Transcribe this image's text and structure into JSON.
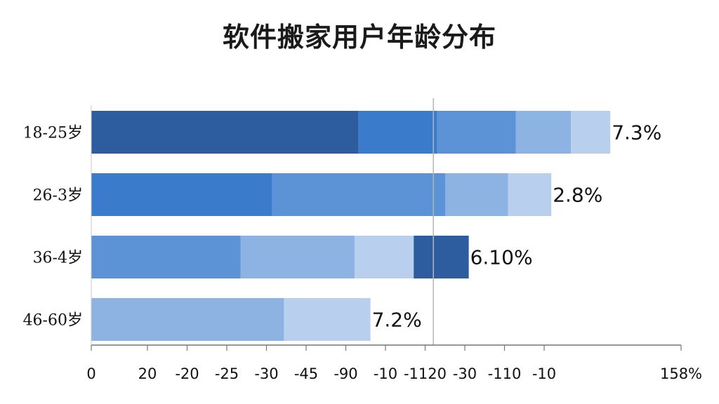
{
  "chart_data": {
    "type": "bar",
    "orientation": "horizontal",
    "stacked": true,
    "title": "软件搬家用户年龄分布",
    "categories": [
      "18-25岁",
      "26-3岁",
      "36-4岁",
      "46-60岁"
    ],
    "segments": [
      [
        68,
        20,
        20,
        14,
        10
      ],
      [
        46,
        44,
        16,
        11
      ],
      [
        38,
        29,
        15,
        14
      ],
      [
        49,
        22
      ]
    ],
    "segment_colors": [
      "#2d5d9f",
      "#3a7ccb",
      "#5c93d6",
      "#8db3e2",
      "#b8d0ee"
    ],
    "row_color_offset": [
      0,
      1,
      2,
      3
    ],
    "value_labels": [
      "7.3%",
      "2.8%",
      "6.10%",
      "7.2%"
    ],
    "x_ticks": [
      "0",
      "20",
      "-20",
      "-25",
      "-30",
      "-45",
      "-90",
      "-10",
      "-1120",
      "-30",
      "-110",
      "-10",
      "158%"
    ],
    "xlim": [
      0,
      150
    ],
    "ref_line": 87,
    "grid": false
  }
}
